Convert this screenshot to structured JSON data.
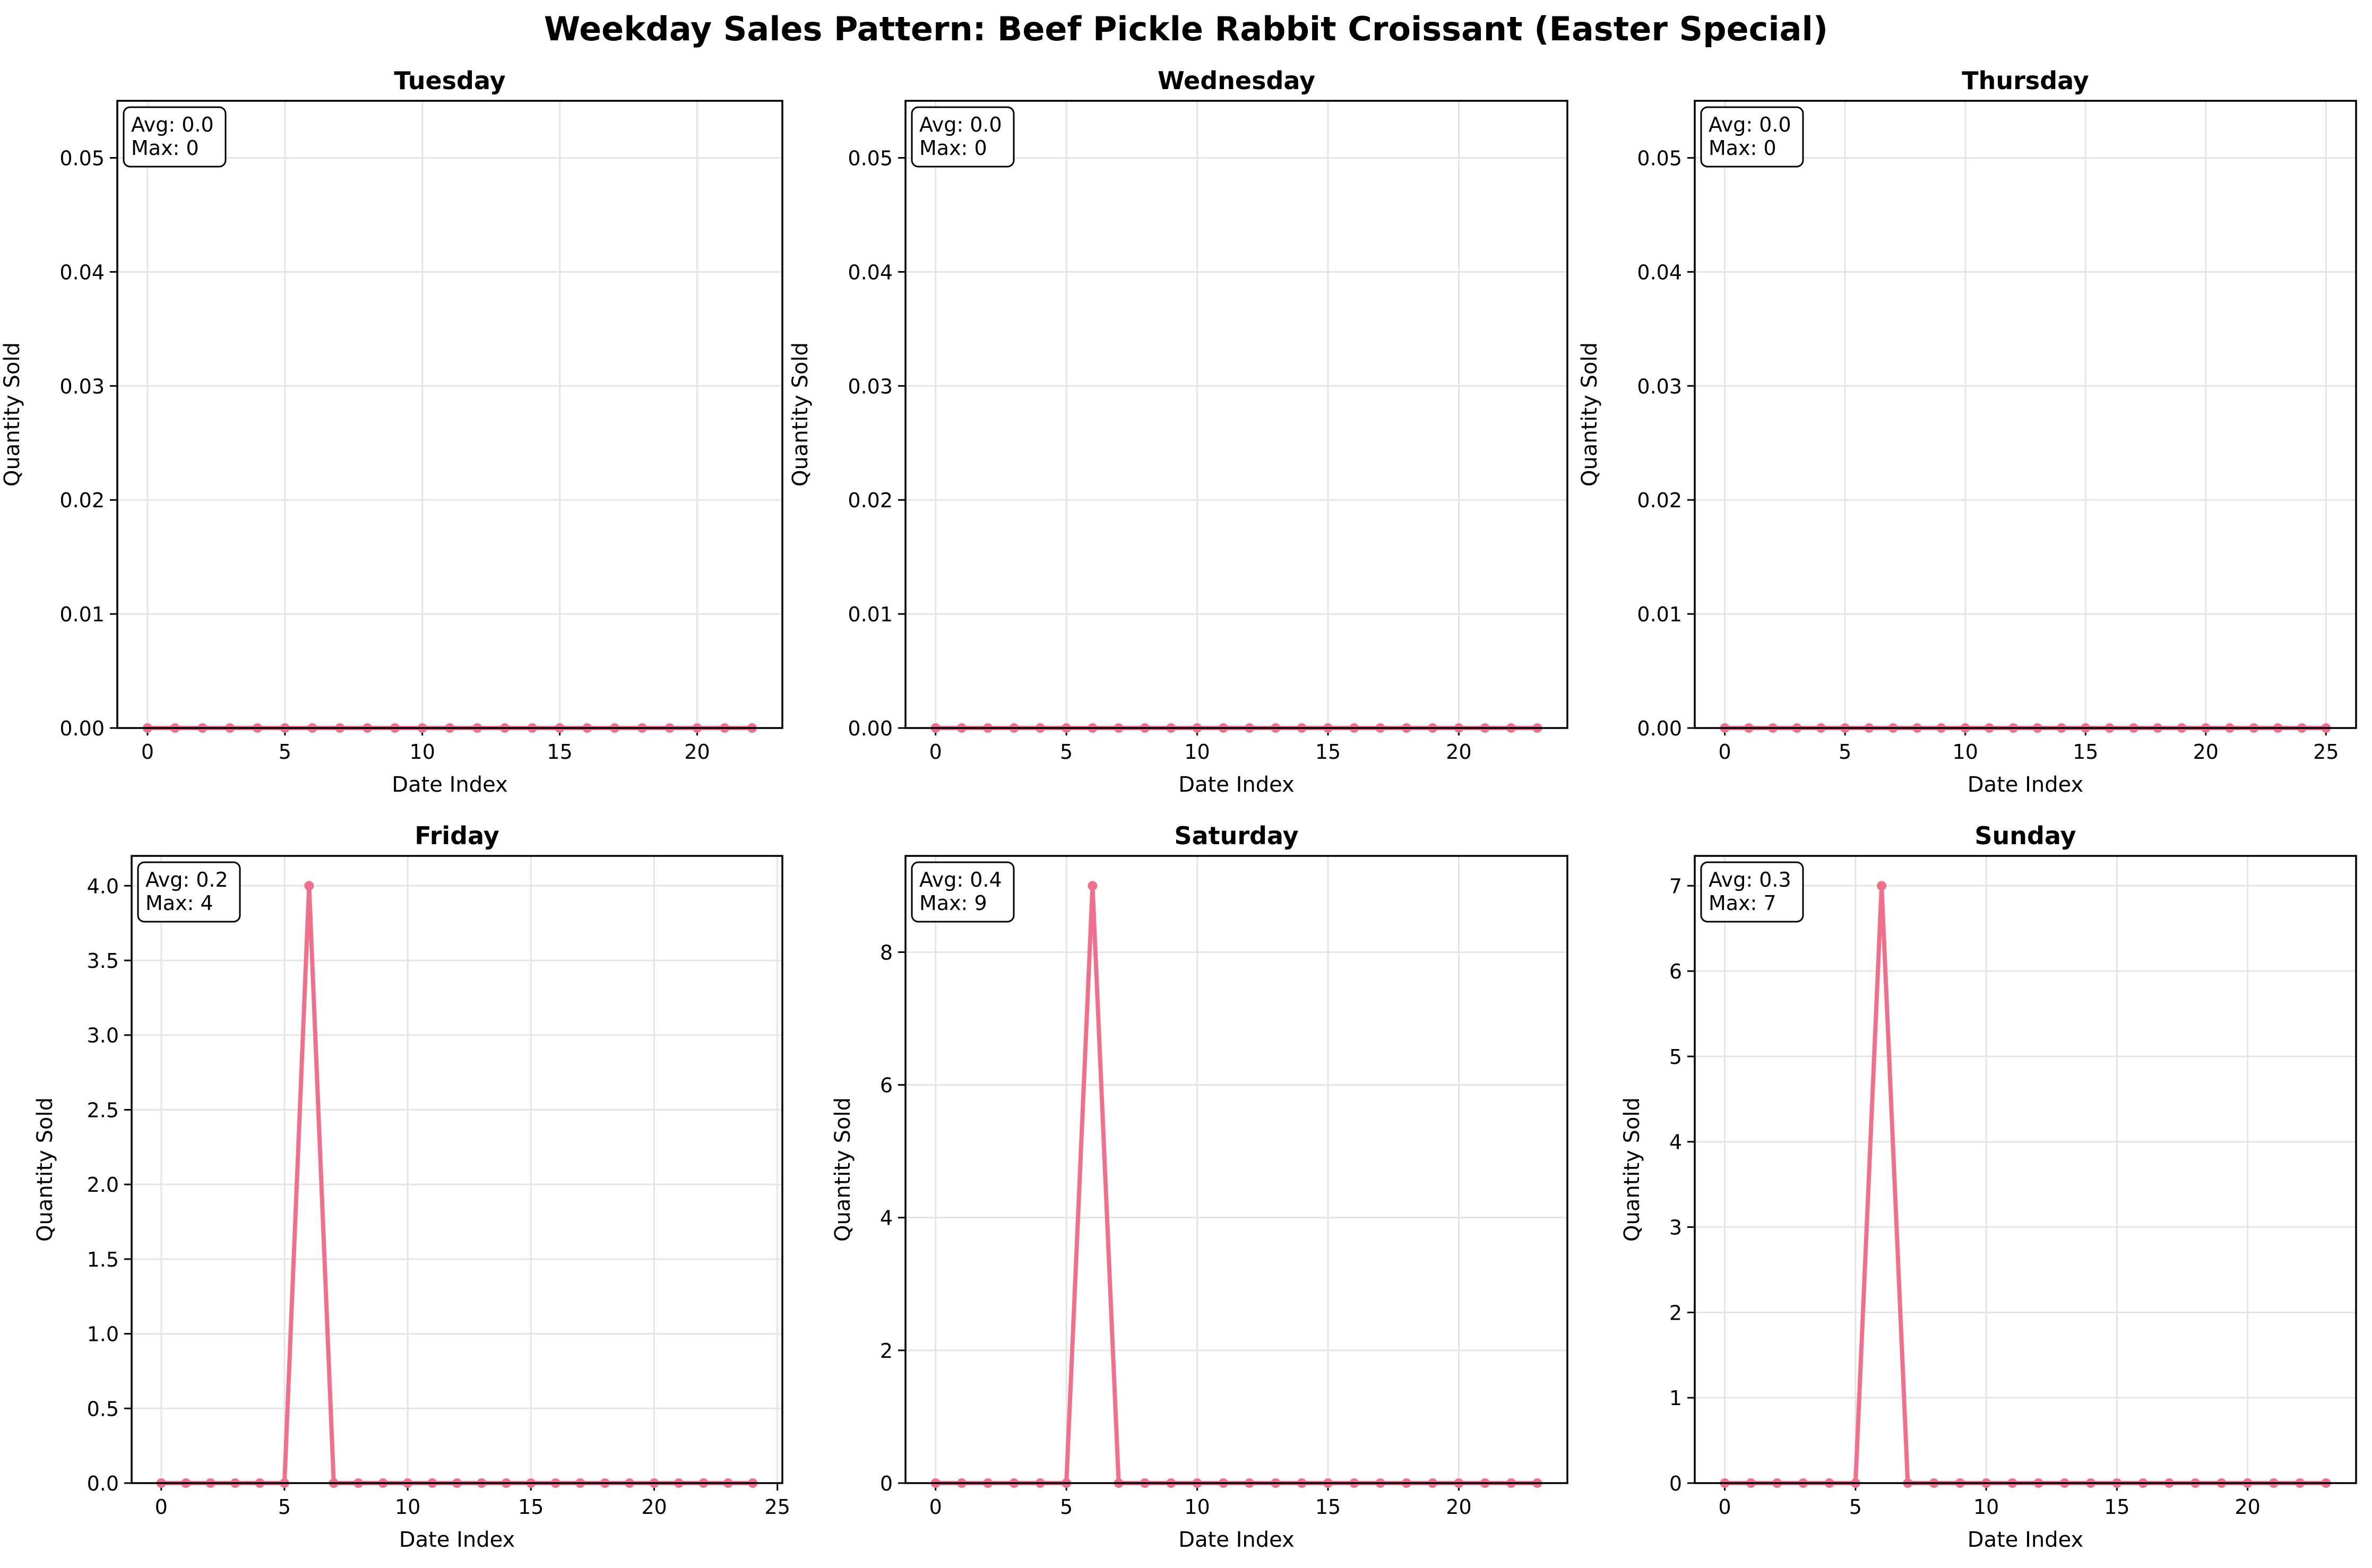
{
  "title": "Weekday Sales Pattern: Beef Pickle Rabbit Croissant (Easter Special)",
  "colors": {
    "line": "#f0708c",
    "grid": "#e5e5e5",
    "axis": "#000000"
  },
  "chart_data": [
    {
      "type": "line",
      "title": "Tuesday",
      "xlabel": "Date Index",
      "ylabel": "Quantity Sold",
      "annotation": [
        "Avg: 0.0",
        "Max: 0"
      ],
      "x": [
        0,
        1,
        2,
        3,
        4,
        5,
        6,
        7,
        8,
        9,
        10,
        11,
        12,
        13,
        14,
        15,
        16,
        17,
        18,
        19,
        20,
        21,
        22
      ],
      "values": [
        0,
        0,
        0,
        0,
        0,
        0,
        0,
        0,
        0,
        0,
        0,
        0,
        0,
        0,
        0,
        0,
        0,
        0,
        0,
        0,
        0,
        0,
        0
      ],
      "xlim": [
        -1.1,
        23.1
      ],
      "ylim": [
        0,
        0.055
      ],
      "xticks": [
        0,
        5,
        10,
        15,
        20
      ],
      "yticks": [
        0.0,
        0.01,
        0.02,
        0.03,
        0.04,
        0.05
      ],
      "ydecimals": 2,
      "grid": true
    },
    {
      "type": "line",
      "title": "Wednesday",
      "xlabel": "Date Index",
      "ylabel": "Quantity Sold",
      "annotation": [
        "Avg: 0.0",
        "Max: 0"
      ],
      "x": [
        0,
        1,
        2,
        3,
        4,
        5,
        6,
        7,
        8,
        9,
        10,
        11,
        12,
        13,
        14,
        15,
        16,
        17,
        18,
        19,
        20,
        21,
        22,
        23
      ],
      "values": [
        0,
        0,
        0,
        0,
        0,
        0,
        0,
        0,
        0,
        0,
        0,
        0,
        0,
        0,
        0,
        0,
        0,
        0,
        0,
        0,
        0,
        0,
        0,
        0
      ],
      "xlim": [
        -1.15,
        24.15
      ],
      "ylim": [
        0,
        0.055
      ],
      "xticks": [
        0,
        5,
        10,
        15,
        20
      ],
      "yticks": [
        0.0,
        0.01,
        0.02,
        0.03,
        0.04,
        0.05
      ],
      "ydecimals": 2,
      "grid": true
    },
    {
      "type": "line",
      "title": "Thursday",
      "xlabel": "Date Index",
      "ylabel": "Quantity Sold",
      "annotation": [
        "Avg: 0.0",
        "Max: 0"
      ],
      "x": [
        0,
        1,
        2,
        3,
        4,
        5,
        6,
        7,
        8,
        9,
        10,
        11,
        12,
        13,
        14,
        15,
        16,
        17,
        18,
        19,
        20,
        21,
        22,
        23,
        24,
        25
      ],
      "values": [
        0,
        0,
        0,
        0,
        0,
        0,
        0,
        0,
        0,
        0,
        0,
        0,
        0,
        0,
        0,
        0,
        0,
        0,
        0,
        0,
        0,
        0,
        0,
        0,
        0,
        0
      ],
      "xlim": [
        -1.25,
        26.25
      ],
      "ylim": [
        0,
        0.055
      ],
      "xticks": [
        0,
        5,
        10,
        15,
        20,
        25
      ],
      "yticks": [
        0.0,
        0.01,
        0.02,
        0.03,
        0.04,
        0.05
      ],
      "ydecimals": 2,
      "grid": true
    },
    {
      "type": "line",
      "title": "Friday",
      "xlabel": "Date Index",
      "ylabel": "Quantity Sold",
      "annotation": [
        "Avg: 0.2",
        "Max: 4"
      ],
      "x": [
        0,
        1,
        2,
        3,
        4,
        5,
        6,
        7,
        8,
        9,
        10,
        11,
        12,
        13,
        14,
        15,
        16,
        17,
        18,
        19,
        20,
        21,
        22,
        23,
        24
      ],
      "values": [
        0,
        0,
        0,
        0,
        0,
        0,
        4,
        0,
        0,
        0,
        0,
        0,
        0,
        0,
        0,
        0,
        0,
        0,
        0,
        0,
        0,
        0,
        0,
        0,
        0
      ],
      "xlim": [
        -1.2,
        25.2
      ],
      "ylim": [
        0,
        4.2
      ],
      "xticks": [
        0,
        5,
        10,
        15,
        20,
        25
      ],
      "yticks": [
        0.0,
        0.5,
        1.0,
        1.5,
        2.0,
        2.5,
        3.0,
        3.5,
        4.0
      ],
      "ydecimals": 1,
      "grid": true
    },
    {
      "type": "line",
      "title": "Saturday",
      "xlabel": "Date Index",
      "ylabel": "Quantity Sold",
      "annotation": [
        "Avg: 0.4",
        "Max: 9"
      ],
      "x": [
        0,
        1,
        2,
        3,
        4,
        5,
        6,
        7,
        8,
        9,
        10,
        11,
        12,
        13,
        14,
        15,
        16,
        17,
        18,
        19,
        20,
        21,
        22,
        23
      ],
      "values": [
        0,
        0,
        0,
        0,
        0,
        0,
        9,
        0,
        0,
        0,
        0,
        0,
        0,
        0,
        0,
        0,
        0,
        0,
        0,
        0,
        0,
        0,
        0,
        0
      ],
      "xlim": [
        -1.15,
        24.15
      ],
      "ylim": [
        0,
        9.45
      ],
      "xticks": [
        0,
        5,
        10,
        15,
        20
      ],
      "yticks": [
        0,
        2,
        4,
        6,
        8
      ],
      "ydecimals": 0,
      "grid": true
    },
    {
      "type": "line",
      "title": "Sunday",
      "xlabel": "Date Index",
      "ylabel": "Quantity Sold",
      "annotation": [
        "Avg: 0.3",
        "Max: 7"
      ],
      "x": [
        0,
        1,
        2,
        3,
        4,
        5,
        6,
        7,
        8,
        9,
        10,
        11,
        12,
        13,
        14,
        15,
        16,
        17,
        18,
        19,
        20,
        21,
        22,
        23
      ],
      "values": [
        0,
        0,
        0,
        0,
        0,
        0,
        7,
        0,
        0,
        0,
        0,
        0,
        0,
        0,
        0,
        0,
        0,
        0,
        0,
        0,
        0,
        0,
        0,
        0
      ],
      "xlim": [
        -1.15,
        24.15
      ],
      "ylim": [
        0,
        7.35
      ],
      "xticks": [
        0,
        5,
        10,
        15,
        20
      ],
      "yticks": [
        0,
        1,
        2,
        3,
        4,
        5,
        6,
        7
      ],
      "ydecimals": 0,
      "grid": true
    }
  ]
}
